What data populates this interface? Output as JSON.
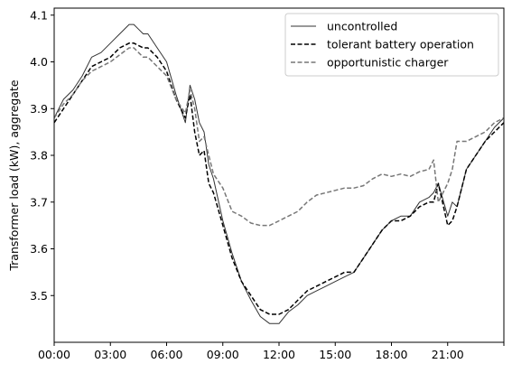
{
  "chart_data": {
    "type": "line",
    "title": "",
    "xlabel": "",
    "ylabel": "Transformer load (kW), aggregate",
    "x_unit": "hours",
    "xlim": [
      0,
      24
    ],
    "ylim": [
      3.4,
      4.115
    ],
    "x_ticks": [
      {
        "value": 0,
        "label": "00:00"
      },
      {
        "value": 3,
        "label": "03:00"
      },
      {
        "value": 6,
        "label": "06:00"
      },
      {
        "value": 9,
        "label": "09:00"
      },
      {
        "value": 12,
        "label": "12:00"
      },
      {
        "value": 15,
        "label": "15:00"
      },
      {
        "value": 18,
        "label": "18:00"
      },
      {
        "value": 21,
        "label": "21:00"
      },
      {
        "value": 24,
        "label": ""
      }
    ],
    "y_ticks": [
      {
        "value": 3.5,
        "label": "3.5"
      },
      {
        "value": 3.6,
        "label": "3.6"
      },
      {
        "value": 3.7,
        "label": "3.7"
      },
      {
        "value": 3.8,
        "label": "3.8"
      },
      {
        "value": 3.9,
        "label": "3.9"
      },
      {
        "value": 4.0,
        "label": "4.0"
      },
      {
        "value": 4.1,
        "label": "4.1"
      }
    ],
    "grid": false,
    "legend_position": "top-right",
    "series": [
      {
        "name": "uncontrolled",
        "color": "#333333",
        "style": "solid",
        "x": [
          0,
          0.5,
          1,
          1.5,
          2,
          2.5,
          3,
          3.5,
          4,
          4.25,
          4.5,
          4.75,
          5,
          5.5,
          6,
          6.5,
          7,
          7.25,
          7.5,
          7.75,
          8,
          8.25,
          8.5,
          9,
          9.5,
          10,
          10.5,
          11,
          11.5,
          12,
          12.5,
          13,
          13.5,
          14,
          14.5,
          15,
          15.5,
          16,
          16.5,
          17,
          17.5,
          18,
          18.5,
          19,
          19.5,
          20,
          20.25,
          20.5,
          21,
          21.25,
          21.5,
          22,
          22.5,
          23,
          23.5,
          24
        ],
        "y": [
          3.88,
          3.92,
          3.94,
          3.97,
          4.01,
          4.02,
          4.04,
          4.06,
          4.08,
          4.08,
          4.07,
          4.06,
          4.06,
          4.03,
          4.0,
          3.93,
          3.87,
          3.95,
          3.92,
          3.87,
          3.85,
          3.78,
          3.75,
          3.66,
          3.59,
          3.53,
          3.49,
          3.455,
          3.44,
          3.44,
          3.465,
          3.48,
          3.5,
          3.51,
          3.52,
          3.53,
          3.54,
          3.55,
          3.58,
          3.61,
          3.64,
          3.66,
          3.67,
          3.67,
          3.7,
          3.71,
          3.72,
          3.74,
          3.67,
          3.7,
          3.69,
          3.77,
          3.8,
          3.83,
          3.86,
          3.88
        ]
      },
      {
        "name": "tolerant battery operation",
        "color": "#000000",
        "style": "dashed",
        "x": [
          0,
          0.5,
          1,
          1.5,
          2,
          2.5,
          3,
          3.5,
          4,
          4.25,
          4.5,
          4.75,
          5,
          5.5,
          6,
          6.5,
          7,
          7.25,
          7.5,
          7.75,
          8,
          8.25,
          8.5,
          9,
          9.5,
          10,
          10.5,
          11,
          11.5,
          12,
          12.5,
          13,
          13.5,
          14,
          14.5,
          15,
          15.5,
          16,
          16.5,
          17,
          17.5,
          18,
          18.5,
          19,
          19.5,
          20,
          20.25,
          20.5,
          21,
          21.25,
          21.5,
          22,
          22.5,
          23,
          23.5,
          24
        ],
        "y": [
          3.87,
          3.9,
          3.93,
          3.96,
          3.99,
          4.0,
          4.01,
          4.03,
          4.04,
          4.04,
          4.035,
          4.03,
          4.03,
          4.01,
          3.98,
          3.92,
          3.88,
          3.93,
          3.85,
          3.8,
          3.81,
          3.74,
          3.72,
          3.65,
          3.58,
          3.53,
          3.5,
          3.47,
          3.46,
          3.46,
          3.47,
          3.49,
          3.51,
          3.52,
          3.53,
          3.54,
          3.55,
          3.55,
          3.58,
          3.61,
          3.64,
          3.66,
          3.66,
          3.67,
          3.69,
          3.7,
          3.7,
          3.74,
          3.65,
          3.66,
          3.69,
          3.77,
          3.8,
          3.83,
          3.85,
          3.87
        ]
      },
      {
        "name": "opportunistic charger",
        "color": "#777777",
        "style": "dashed",
        "x": [
          0,
          0.5,
          1,
          1.5,
          2,
          2.5,
          3,
          3.5,
          4,
          4.25,
          4.5,
          4.75,
          5,
          5.5,
          6,
          6.5,
          7,
          7.25,
          7.5,
          7.75,
          8,
          8.25,
          8.5,
          9,
          9.5,
          10,
          10.5,
          11,
          11.5,
          12,
          12.5,
          13,
          13.5,
          14,
          14.5,
          15,
          15.5,
          16,
          16.5,
          17,
          17.5,
          18,
          18.5,
          19,
          19.5,
          20,
          20.25,
          20.5,
          21,
          21.25,
          21.5,
          22,
          22.5,
          23,
          23.5,
          24
        ],
        "y": [
          3.88,
          3.91,
          3.93,
          3.96,
          3.98,
          3.99,
          4.0,
          4.015,
          4.03,
          4.03,
          4.02,
          4.01,
          4.01,
          3.99,
          3.97,
          3.92,
          3.89,
          3.94,
          3.9,
          3.83,
          3.84,
          3.8,
          3.76,
          3.73,
          3.68,
          3.67,
          3.655,
          3.65,
          3.65,
          3.66,
          3.67,
          3.68,
          3.7,
          3.715,
          3.72,
          3.725,
          3.73,
          3.73,
          3.735,
          3.75,
          3.76,
          3.755,
          3.76,
          3.755,
          3.765,
          3.77,
          3.79,
          3.7,
          3.74,
          3.77,
          3.83,
          3.83,
          3.84,
          3.85,
          3.87,
          3.88
        ]
      }
    ]
  }
}
